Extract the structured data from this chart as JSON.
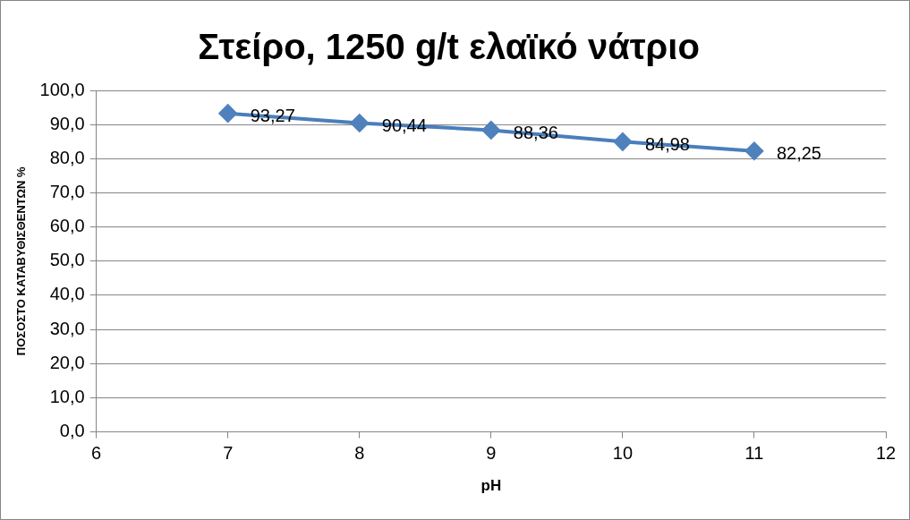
{
  "chart_data": {
    "type": "line",
    "title": "Στείρο, 1250 g/t ελαϊκό νάτριο",
    "xlabel": "pH",
    "ylabel": "ΠΟΣΟΣΤΟ ΚΑΤΑΒΥΘΙΣΘΕΝΤΩΝ %",
    "x": [
      7,
      8,
      9,
      10,
      11
    ],
    "series": [
      {
        "color": "#4a7ebb",
        "values": [
          93.27,
          90.44,
          88.36,
          84.98,
          82.25
        ],
        "value_labels": [
          "93,27",
          "90,44",
          "88,36",
          "84,98",
          "82,25"
        ]
      }
    ],
    "xlim": [
      6,
      12
    ],
    "xticks": [
      6,
      7,
      8,
      9,
      10,
      11,
      12
    ],
    "ylim": [
      0,
      100
    ],
    "yticks": [
      {
        "value": 0,
        "label": "0,0"
      },
      {
        "value": 10,
        "label": "10,0"
      },
      {
        "value": 20,
        "label": "20,0"
      },
      {
        "value": 30,
        "label": "30,0"
      },
      {
        "value": 40,
        "label": "40,0"
      },
      {
        "value": 50,
        "label": "50,0"
      },
      {
        "value": 60,
        "label": "60,0"
      },
      {
        "value": 70,
        "label": "70,0"
      },
      {
        "value": 80,
        "label": "80,0"
      },
      {
        "value": 90,
        "label": "90,0"
      },
      {
        "value": 100,
        "label": "100,0"
      }
    ],
    "grid": "y",
    "legend": false,
    "marker": "diamond",
    "line_style": "solid"
  }
}
